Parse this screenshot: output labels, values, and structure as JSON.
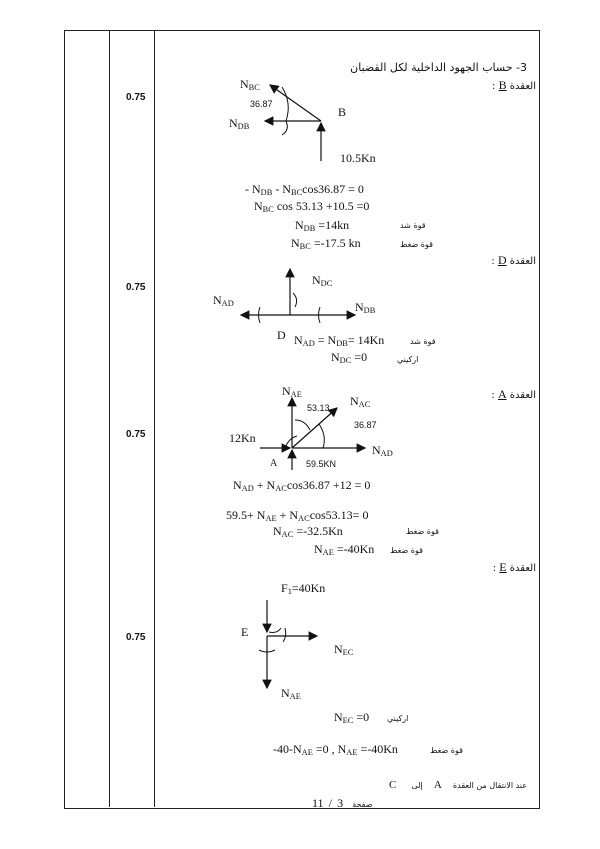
{
  "scores": [
    "0.75",
    "0.75",
    "0.75",
    "0.75"
  ],
  "section_title": "3- حساب الجهود الداخلية لكل القضبان",
  "nodes": {
    "B": {
      "heading_ar": "العقدة",
      "heading_letter": "B",
      "heading_colon": ":",
      "labels": {
        "nbc": "N",
        "nbc_sub": "BC",
        "ndb": "N",
        "ndb_sub": "DB",
        "point": "B",
        "angle": "36.87",
        "load": "10.5Kn"
      },
      "equations": [
        {
          "pre": "- N",
          "sub1": "DB",
          "mid": " - N",
          "sub2": "BC",
          "post": "cos36.87  = 0"
        },
        {
          "pre": "N",
          "sub1": "BC",
          "mid": " cos 53.13 +10.5 =0",
          "sub2": "",
          "post": ""
        }
      ],
      "results": [
        {
          "pre": "N",
          "sub": "DB",
          "post": " =14kn",
          "note": "قوة شد"
        },
        {
          "pre": "N",
          "sub": "BC",
          "post": " =-17.5 kn",
          "note": "قوة ضغط"
        }
      ]
    },
    "D": {
      "heading_ar": "العقدة",
      "heading_letter": "D",
      "heading_colon": ":",
      "labels": {
        "nad": "N",
        "nad_sub": "AD",
        "ndc": "N",
        "ndc_sub": "DC",
        "ndb": "N",
        "ndb_sub": "DB",
        "point": "D"
      },
      "results": [
        {
          "pre": "N",
          "sub": "AD",
          "post": " = N",
          "sub2": "DB",
          "post2": "= 14Kn",
          "note": "قوة شد"
        },
        {
          "pre": "N",
          "sub": "DC",
          "post": " =0",
          "sub2": "",
          "post2": "",
          "note": "اركيني"
        }
      ]
    },
    "A": {
      "heading_ar": "العقدة",
      "heading_letter": "A",
      "heading_colon": ":",
      "labels": {
        "nae": "N",
        "nae_sub": "AE",
        "nac": "N",
        "nac_sub": "AC",
        "nad": "N",
        "nad_sub": "AD",
        "angle1": "53.13",
        "angle2": "36.87",
        "load_h": "12Kn",
        "load_v": "59.5KN",
        "point": "A"
      },
      "equations": [
        {
          "text_a": "N",
          "sub_a": "AD",
          "text_b": " + N",
          "sub_b": "AC",
          "text_c": "cos36.87 +12 = 0"
        },
        {
          "text_a": "59.5+ N",
          "sub_a": "AE",
          "text_b": " + N",
          "sub_b": "AC",
          "text_c": "cos53.13= 0"
        }
      ],
      "results": [
        {
          "pre": "N",
          "sub": "AC",
          "post": " =-32.5Kn",
          "note": "قوة ضغط"
        },
        {
          "pre": "N",
          "sub": "AE",
          "post": " =-40Kn",
          "note": "قوة ضغط"
        }
      ]
    },
    "E": {
      "heading_ar": "العقدة",
      "heading_letter": "E",
      "heading_colon": ":",
      "labels": {
        "force": "F",
        "force_sub": "1",
        "force_val": "=40Kn",
        "point": "E",
        "nec": "N",
        "nec_sub": "EC",
        "nae": "N",
        "nae_sub": "AE"
      },
      "results": [
        {
          "pre": "N",
          "sub": "EC",
          "post": " =0",
          "note": "اركيني"
        }
      ],
      "final": {
        "a": "-40-N",
        "sub_a": "AE",
        "b": " =0   ,  N",
        "sub_b": "AE",
        "c": " =-40Kn",
        "note": "قوة ضغط"
      }
    }
  },
  "transition": {
    "ar": "عند الانتقال من العقدة",
    "from": "A",
    "to_ar": "إلى",
    "to": "C"
  },
  "footer": {
    "page_ar": "صفحة",
    "page": "3",
    "sep": "/",
    "total": "11"
  }
}
